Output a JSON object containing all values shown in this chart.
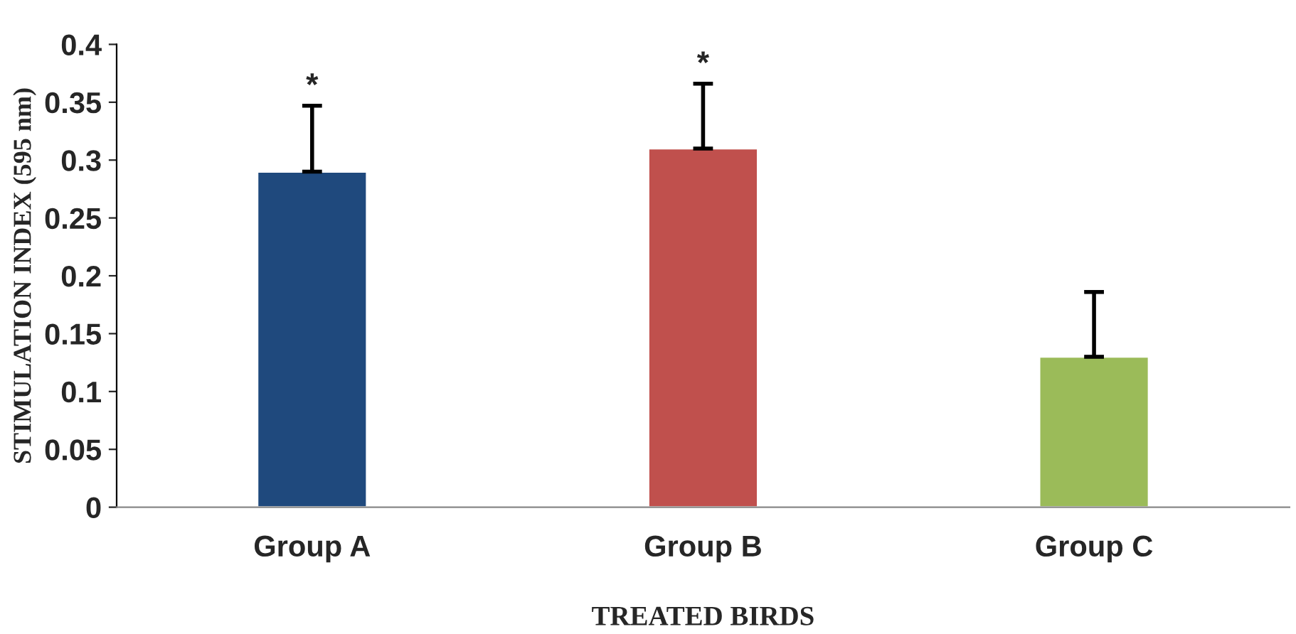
{
  "chart_data": {
    "type": "bar",
    "xlabel": "TREATED BIRDS",
    "ylabel": "STIMULATION INDEX (595 nm)",
    "categories": [
      "Group A",
      "Group B",
      "Group C"
    ],
    "values": [
      0.29,
      0.31,
      0.13
    ],
    "colors": [
      "#1f497d",
      "#c0504d",
      "#9bbb59"
    ],
    "errors": [
      [
        0.29,
        0.347
      ],
      [
        0.31,
        0.366
      ],
      [
        0.13,
        0.186
      ]
    ],
    "ylim": [
      0,
      0.4
    ],
    "yticks": [
      0,
      0.05,
      0.1,
      0.15,
      0.2,
      0.25,
      0.3,
      0.35,
      0.4
    ],
    "grid": false,
    "annotations": [
      {
        "text": "*",
        "x": "Group A",
        "y": 0.347
      },
      {
        "text": "*",
        "x": "Group B",
        "y": 0.366
      }
    ]
  }
}
